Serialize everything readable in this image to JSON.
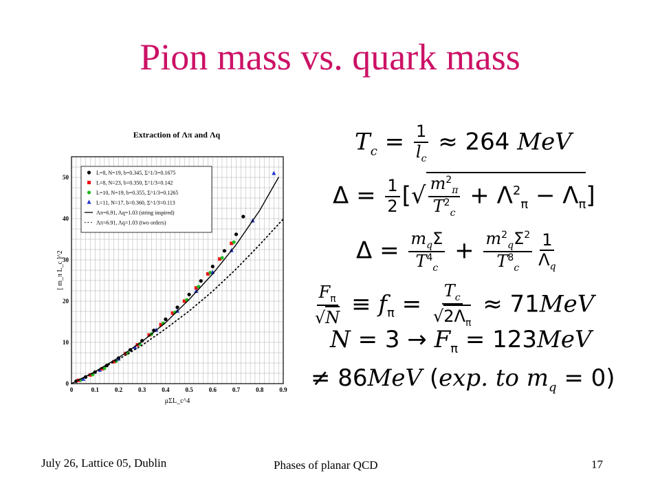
{
  "slide": {
    "title": "Pion mass vs. quark mass",
    "footer_left": "July 26, Lattice 05, Dublin",
    "footer_center": "Phases of planar QCD",
    "page_number": "17"
  },
  "equations": {
    "tc": {
      "lhs": "T",
      "lhs_sub": "c",
      "num": "1",
      "den": "l",
      "den_sub": "c",
      "value": "≈ 264",
      "unit": "MeV"
    },
    "delta1": {
      "lhs": "Δ =",
      "half_num": "1",
      "half_den": "2",
      "open": "[",
      "m": "m",
      "m_sub": "π",
      "m_sup": "2",
      "t": "T",
      "t_sub": "c",
      "t_sup": "2",
      "plus": "+ Λ",
      "lam_sup": "2",
      "lam_sub": "π",
      "minus": "− Λ",
      "minus_sub": "π",
      "close": "]"
    },
    "delta2": {
      "lhs": "Δ =",
      "n1": "m",
      "n1_sub": "q",
      "n1_rest": "Σ",
      "d1": "T",
      "d1_sub": "c",
      "d1_sup": "4",
      "plus": "+",
      "n2": "m",
      "n2_sub": "q",
      "n2_sup": "2",
      "n2_rest": "Σ",
      "n2_rest_sup": "2",
      "d2": "T",
      "d2_sub": "c",
      "d2_sup": "8",
      "n3": "1",
      "d3": "Λ",
      "d3_sub": "q"
    },
    "fpi": {
      "n": "F",
      "n_sub": "π",
      "d": "N",
      "equiv": "≡",
      "f": "f",
      "f_sub": "π",
      "eq": "=",
      "tn": "T",
      "tn_sub": "c",
      "td": "2Λ",
      "td_sub": "π",
      "approx": "≈ 71",
      "unit": "MeV"
    },
    "n3": {
      "n": "N",
      "rest": "= 3 →",
      "f": "F",
      "f_sub": "π",
      "eq": "= 123",
      "unit": "MeV"
    },
    "neq": {
      "sym": "≠ 86",
      "unit": "MeV",
      "open": "(",
      "exp": "exp. to m",
      "sub": "q",
      "tail": "= 0)"
    }
  },
  "chart_data": {
    "type": "scatter",
    "title": "Extraction of Λπ and Λq",
    "xlabel": "μΣL_c^4",
    "ylabel": "[ m_π L_c ]^2",
    "xlim": [
      0,
      0.9
    ],
    "ylim": [
      0,
      55
    ],
    "xticks": [
      "0",
      "0.1",
      "0.2",
      "0.3",
      "0.4",
      "0.5",
      "0.6",
      "0.7",
      "0.8",
      "0.9"
    ],
    "yticks": [
      "0",
      "10",
      "20",
      "30",
      "40",
      "50"
    ],
    "grid": true,
    "legend_position": "top-left",
    "series": [
      {
        "name": "L=8, N=19, b=0.345, Σ^1/3=0.1675",
        "color": "#000000",
        "marker": "circle",
        "x": [
          0.02,
          0.06,
          0.1,
          0.15,
          0.2,
          0.25,
          0.3,
          0.35,
          0.4,
          0.45,
          0.5,
          0.55,
          0.6,
          0.65,
          0.7,
          0.73
        ],
        "y": [
          0.6,
          1.6,
          2.8,
          4.4,
          6.2,
          8.2,
          10.4,
          12.9,
          15.6,
          18.5,
          21.6,
          24.9,
          28.4,
          32.2,
          36.2,
          40.5
        ]
      },
      {
        "name": "L=8, N=23, b=0.350, Σ^1/3=0.142",
        "color": "#ee1111",
        "marker": "square",
        "x": [
          0.03,
          0.08,
          0.13,
          0.18,
          0.23,
          0.28,
          0.33,
          0.38,
          0.43,
          0.48,
          0.53,
          0.58,
          0.63,
          0.68
        ],
        "y": [
          0.8,
          2.1,
          3.6,
          5.3,
          7.3,
          9.4,
          11.8,
          14.3,
          17.1,
          20.0,
          23.2,
          26.6,
          30.2,
          34.0
        ]
      },
      {
        "name": "L=10, N=19, b=0.355, Σ^1/3=0.1265",
        "color": "#22bb22",
        "marker": "circle",
        "x": [
          0.04,
          0.09,
          0.14,
          0.19,
          0.24,
          0.29,
          0.34,
          0.39,
          0.44,
          0.49,
          0.54,
          0.59,
          0.64,
          0.69
        ],
        "y": [
          0.9,
          2.2,
          3.7,
          5.5,
          7.4,
          9.6,
          12.0,
          14.6,
          17.3,
          20.3,
          23.5,
          26.9,
          30.5,
          34.3
        ]
      },
      {
        "name": "L=11, N=17, b=0.360, Σ^1/3=0.113",
        "color": "#2233cc",
        "marker": "triangle",
        "x": [
          0.05,
          0.12,
          0.2,
          0.27,
          0.36,
          0.45,
          0.53,
          0.6,
          0.68,
          0.77,
          0.86
        ],
        "y": [
          1.1,
          3.3,
          6.0,
          8.8,
          13.0,
          17.6,
          22.4,
          27.0,
          32.3,
          39.5,
          51.0
        ]
      },
      {
        "name": "Λπ=6.91, Λq=1.03 (string inspired)",
        "color": "#000000",
        "style": "solid",
        "x": [
          0,
          0.1,
          0.2,
          0.3,
          0.4,
          0.5,
          0.6,
          0.7,
          0.8,
          0.88
        ],
        "y": [
          0,
          2.9,
          6.3,
          10.2,
          14.8,
          20.4,
          26.6,
          33.7,
          42.0,
          50.0
        ]
      },
      {
        "name": "Λπ=6.91, Λq=1.03 (two orders)",
        "color": "#000000",
        "style": "dotted",
        "x": [
          0,
          0.1,
          0.2,
          0.3,
          0.4,
          0.5,
          0.6,
          0.7,
          0.8,
          0.9
        ],
        "y": [
          0,
          2.8,
          5.9,
          9.3,
          13.3,
          17.6,
          22.4,
          27.8,
          33.7,
          39.9
        ]
      }
    ]
  }
}
